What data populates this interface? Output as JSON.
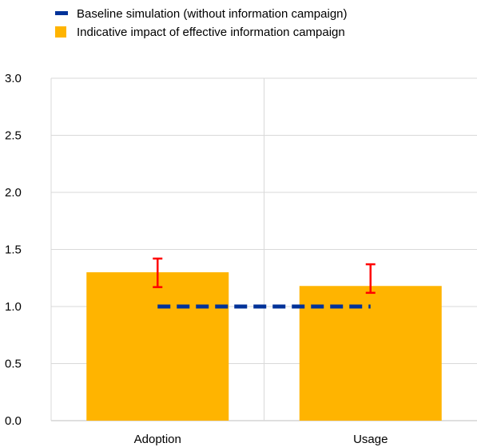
{
  "chart_data": {
    "type": "bar",
    "categories": [
      "Adoption",
      "Usage"
    ],
    "series": [
      {
        "name": "Indicative impact of effective information campaign",
        "kind": "bar",
        "color": "#FFB400",
        "values": [
          1.3,
          1.18
        ],
        "error_low": [
          1.17,
          1.12
        ],
        "error_high": [
          1.42,
          1.37
        ],
        "error_color": "#FF0000"
      },
      {
        "name": "Baseline simulation (without information campaign)",
        "kind": "line",
        "style": "dashed",
        "color": "#003299",
        "values": [
          1.0,
          1.0
        ]
      }
    ],
    "ylim": [
      0,
      3.0
    ],
    "yticks": [
      "0.0",
      "0.5",
      "1.0",
      "1.5",
      "2.0",
      "2.5",
      "3.0"
    ],
    "grid": true,
    "legend_placement": "top-left",
    "xlabel": "",
    "ylabel": ""
  }
}
